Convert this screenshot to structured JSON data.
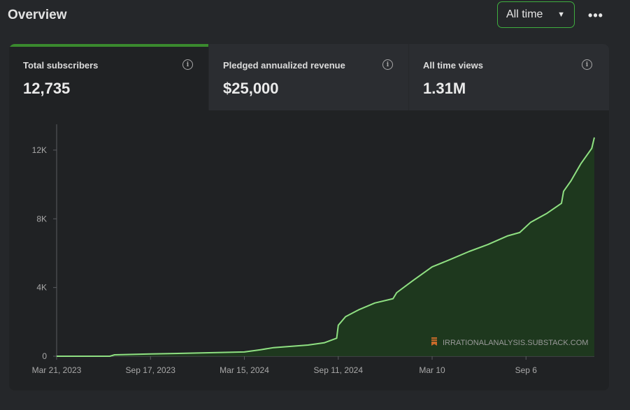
{
  "header": {
    "title": "Overview",
    "range_label": "All time",
    "range_caret": "▼",
    "more_label": "•••"
  },
  "cards": [
    {
      "label": "Total subscribers",
      "value": "12,735",
      "active": true
    },
    {
      "label": "Pledged annualized revenue",
      "value": "$25,000",
      "active": false
    },
    {
      "label": "All time views",
      "value": "1.31M",
      "active": false
    }
  ],
  "info_glyph": "i",
  "watermark": "IRRATIONALANALYSIS.SUBSTACK.COM",
  "colors": {
    "accent": "#3a8a2e",
    "line": "#8fe082",
    "area": "#1f3a1f",
    "select_border": "#3fae3f"
  },
  "chart_data": {
    "type": "area",
    "ylim": [
      0,
      13500
    ],
    "y_ticks": [
      {
        "value": 0,
        "label": "0"
      },
      {
        "value": 4000,
        "label": "4K"
      },
      {
        "value": 8000,
        "label": "8K"
      },
      {
        "value": 12000,
        "label": "12K"
      }
    ],
    "x_ticks": [
      {
        "date": "2023-03-21",
        "label": "Mar 21, 2023"
      },
      {
        "date": "2023-09-17",
        "label": "Sep 17, 2023"
      },
      {
        "date": "2024-03-15",
        "label": "Mar 15, 2024"
      },
      {
        "date": "2024-09-11",
        "label": "Sep 11, 2024"
      },
      {
        "date": "2025-03-10",
        "label": "Mar 10"
      },
      {
        "date": "2025-09-06",
        "label": "Sep 6"
      }
    ],
    "series": [
      {
        "points": [
          [
            "2023-03-21",
            0
          ],
          [
            "2023-07-01",
            0
          ],
          [
            "2023-07-10",
            80
          ],
          [
            "2023-09-17",
            130
          ],
          [
            "2023-12-01",
            180
          ],
          [
            "2024-03-15",
            250
          ],
          [
            "2024-04-15",
            380
          ],
          [
            "2024-05-10",
            500
          ],
          [
            "2024-07-15",
            650
          ],
          [
            "2024-08-15",
            780
          ],
          [
            "2024-09-08",
            1050
          ],
          [
            "2024-09-11",
            1800
          ],
          [
            "2024-09-25",
            2300
          ],
          [
            "2024-10-20",
            2700
          ],
          [
            "2024-11-20",
            3100
          ],
          [
            "2024-12-25",
            3350
          ],
          [
            "2025-01-01",
            3700
          ],
          [
            "2025-02-01",
            4400
          ],
          [
            "2025-03-10",
            5200
          ],
          [
            "2025-04-15",
            5650
          ],
          [
            "2025-05-20",
            6100
          ],
          [
            "2025-06-25",
            6500
          ],
          [
            "2025-08-01",
            7000
          ],
          [
            "2025-08-25",
            7200
          ],
          [
            "2025-09-15",
            7800
          ],
          [
            "2025-10-15",
            8300
          ],
          [
            "2025-11-13",
            8900
          ],
          [
            "2025-11-17",
            9600
          ],
          [
            "2025-12-01",
            10200
          ],
          [
            "2025-12-20",
            11200
          ],
          [
            "2026-01-10",
            12100
          ],
          [
            "2026-01-15",
            12735
          ]
        ]
      }
    ]
  }
}
